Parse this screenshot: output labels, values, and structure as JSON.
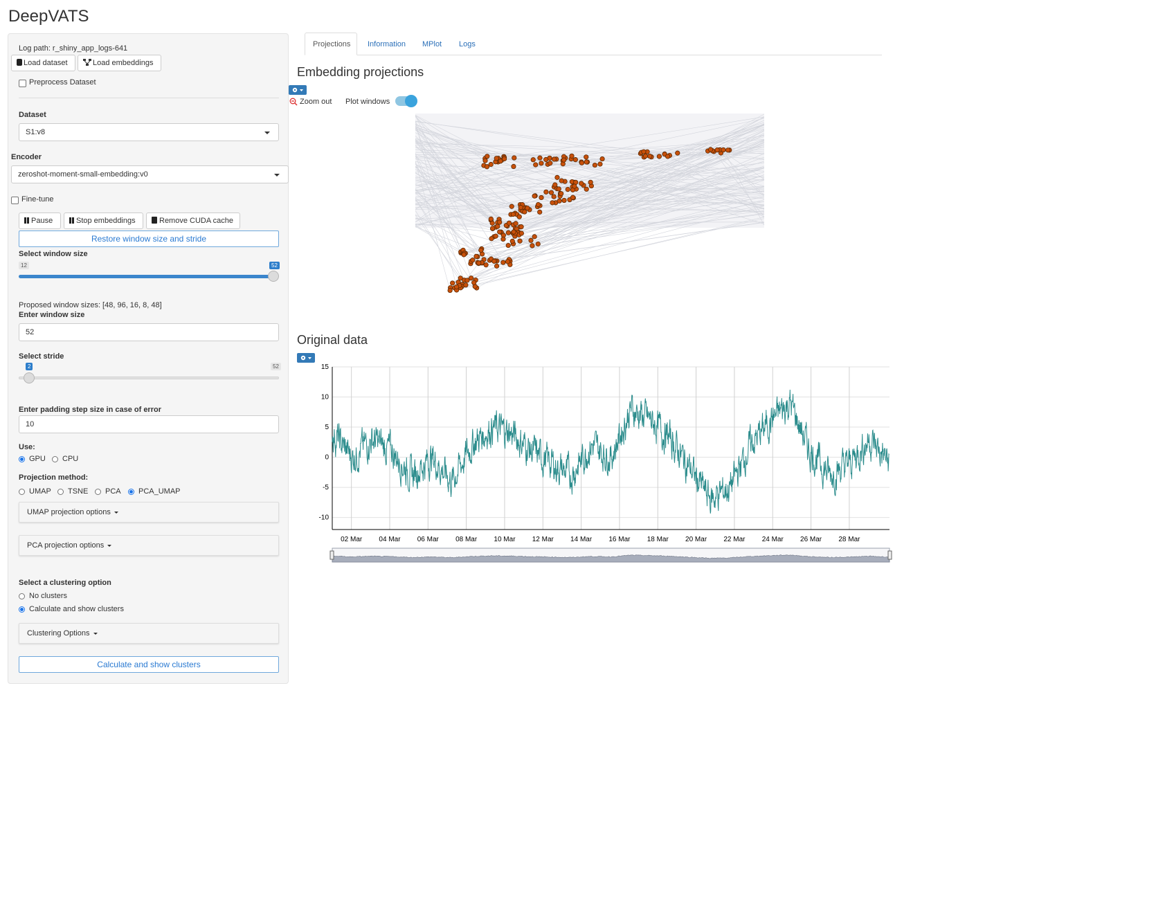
{
  "app_title": "DeepVATS",
  "sidebar": {
    "log_path": "Log path: r_shiny_app_logs-641",
    "load_dataset": "Load dataset",
    "load_embeddings": "Load embeddings",
    "preprocess": "Preprocess Dataset",
    "dataset_label": "Dataset",
    "dataset_value": "S1:v8",
    "encoder_label": "Encoder",
    "encoder_value": "zeroshot-moment-small-embedding:v0",
    "finetune": "Fine-tune",
    "pause": "Pause",
    "stop_embeddings": "Stop embeddings",
    "remove_cuda": "Remove CUDA cache",
    "restore_window": "Restore window size and stride",
    "window_size_label": "Select window size",
    "window_min": "12",
    "window_max": "52",
    "window_value": 52,
    "proposed": "Proposed window sizes: [48, 96, 16, 8, 48]",
    "enter_window_label": "Enter window size",
    "enter_window_value": "52",
    "stride_label": "Select stride",
    "stride_min": "2",
    "stride_max": "52",
    "stride_value": 2,
    "padding_label": "Enter padding step size in case of error",
    "padding_value": "10",
    "use_label": "Use:",
    "use_options": [
      "GPU",
      "CPU"
    ],
    "use_selected": "GPU",
    "projection_label": "Projection method:",
    "projection_options": [
      "UMAP",
      "TSNE",
      "PCA",
      "PCA_UMAP"
    ],
    "projection_selected": "PCA_UMAP",
    "umap_options": "UMAP projection options",
    "pca_options": "PCA projection options",
    "clustering_label": "Select a clustering option",
    "clustering_options": [
      "No clusters",
      "Calculate and show clusters"
    ],
    "clustering_selected": "Calculate and show clusters",
    "clustering_panel": "Clustering Options",
    "calc_button": "Calculate and show clusters"
  },
  "tabs": [
    "Projections",
    "Information",
    "MPlot",
    "Logs"
  ],
  "active_tab": "Projections",
  "embedding": {
    "title": "Embedding projections",
    "zoom_out": "Zoom out",
    "plot_windows": "Plot windows",
    "plot_windows_on": true,
    "point_color": "#c8500a",
    "line_color": "#d3d5dc"
  },
  "original": {
    "title": "Original data",
    "line_color": "#2b8c8c"
  },
  "chart_data": {
    "type": "line",
    "title": "",
    "xlabel": "",
    "ylabel": "",
    "x_ticks": [
      "02 Mar",
      "04 Mar",
      "06 Mar",
      "08 Mar",
      "10 Mar",
      "12 Mar",
      "14 Mar",
      "16 Mar",
      "18 Mar",
      "20 Mar",
      "22 Mar",
      "24 Mar",
      "26 Mar",
      "28 Mar"
    ],
    "y_ticks": [
      "15",
      "10",
      "5",
      "0",
      "-5",
      "-10"
    ],
    "ylim": [
      -12,
      15
    ],
    "series": [
      {
        "x": [
          "01 Mar",
          "02 Mar",
          "03 Mar",
          "04 Mar",
          "05 Mar",
          "06 Mar",
          "07 Mar",
          "08 Mar",
          "09 Mar",
          "10 Mar",
          "11 Mar",
          "12 Mar",
          "13 Mar",
          "14 Mar",
          "15 Mar",
          "16 Mar",
          "17 Mar",
          "18 Mar",
          "19 Mar",
          "20 Mar",
          "21 Mar",
          "22 Mar",
          "23 Mar",
          "24 Mar",
          "25 Mar",
          "26 Mar",
          "27 Mar",
          "28 Mar",
          "29 Mar"
        ],
        "values": [
          4,
          0,
          3,
          1,
          -3,
          0,
          -4,
          2,
          5,
          4,
          1,
          -1,
          -3,
          2,
          0,
          8,
          6,
          3,
          -2,
          -7,
          -5,
          2,
          6,
          9,
          1,
          -3,
          -1,
          3,
          -1
        ]
      }
    ],
    "grid": true
  }
}
